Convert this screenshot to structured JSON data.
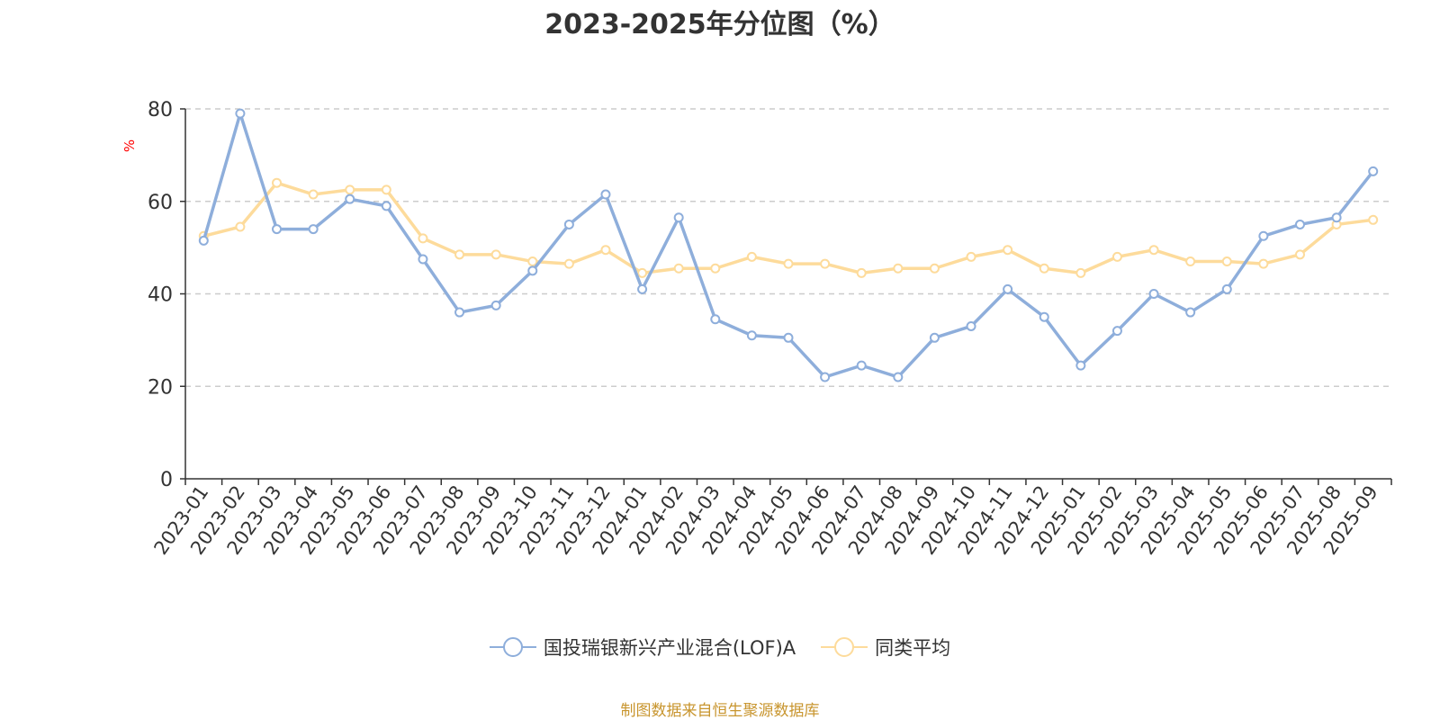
{
  "colors": {
    "series_a": "#8eaedb",
    "series_b": "#fddb9b",
    "axis": "#333333",
    "grid": "#cccccc",
    "ylabel": "#ff0000",
    "source": "#c8952e"
  },
  "chart_data": {
    "type": "line",
    "title": "2023-2025年分位图（%）",
    "ylabel": "%",
    "xlabel": "",
    "ylim": [
      0,
      80
    ],
    "yticks": [
      0,
      20,
      40,
      60,
      80
    ],
    "grid": true,
    "legend_position": "bottom",
    "categories": [
      "2023-01",
      "2023-02",
      "2023-03",
      "2023-04",
      "2023-05",
      "2023-06",
      "2023-07",
      "2023-08",
      "2023-09",
      "2023-10",
      "2023-11",
      "2023-12",
      "2024-01",
      "2024-02",
      "2024-03",
      "2024-04",
      "2024-05",
      "2024-06",
      "2024-07",
      "2024-08",
      "2024-09",
      "2024-10",
      "2024-11",
      "2024-12",
      "2025-01",
      "2025-02",
      "2025-03",
      "2025-04",
      "2025-05",
      "2025-06",
      "2025-07",
      "2025-08",
      "2025-09"
    ],
    "series": [
      {
        "name": "国投瑞银新兴产业混合(LOF)A",
        "color": "#8eaedb",
        "values": [
          51.5,
          79,
          54,
          54,
          60.5,
          59,
          47.5,
          36,
          37.5,
          45,
          55,
          61.5,
          41,
          56.5,
          34.5,
          31,
          30.5,
          22,
          24.5,
          22,
          30.5,
          33,
          41,
          35,
          24.5,
          32,
          40,
          36,
          41,
          52.5,
          55,
          56.5,
          66.5
        ]
      },
      {
        "name": "同类平均",
        "color": "#fddb9b",
        "values": [
          52.5,
          54.5,
          64,
          61.5,
          62.5,
          62.5,
          52,
          48.5,
          48.5,
          47,
          46.5,
          49.5,
          44.5,
          45.5,
          45.5,
          48,
          46.5,
          46.5,
          44.5,
          45.5,
          45.5,
          48,
          49.5,
          45.5,
          44.5,
          48,
          49.5,
          47,
          47,
          46.5,
          48.5,
          55,
          56
        ]
      }
    ]
  },
  "legend": {
    "items": [
      {
        "label": "国投瑞银新兴产业混合(LOF)A"
      },
      {
        "label": "同类平均"
      }
    ]
  },
  "source_note": "制图数据来自恒生聚源数据库"
}
